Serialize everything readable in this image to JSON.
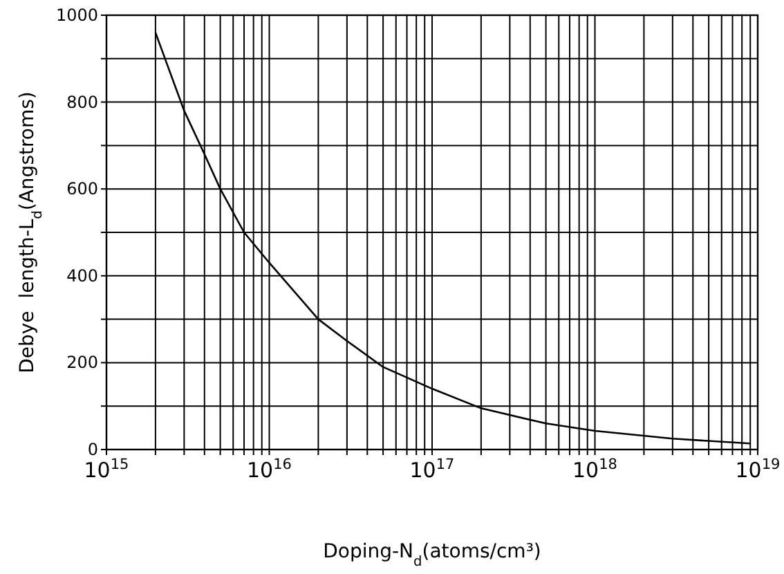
{
  "chart_data": {
    "type": "line",
    "xlabel": "Doping-N$_{d}$(atoms/cm³)",
    "ylabel": "Debye  length-L$_{d}$(Angstroms)",
    "log": "x",
    "xlim": [
      1000000000000000.0,
      1e+19
    ],
    "ylim": [
      0,
      1000
    ],
    "xticks": [
      {
        "value": 1000000000000000.0,
        "label": "10$^{15}$"
      },
      {
        "value": 2000000000000000.0,
        "label": null
      },
      {
        "value": 3000000000000000.0,
        "label": null
      },
      {
        "value": 4000000000000000.0,
        "label": null
      },
      {
        "value": 5000000000000000.0,
        "label": null
      },
      {
        "value": 6000000000000000.0,
        "label": null
      },
      {
        "value": 7000000000000000.0,
        "label": null
      },
      {
        "value": 8000000000000000.0,
        "label": null
      },
      {
        "value": 9000000000000000.0,
        "label": null
      },
      {
        "value": 1e+16,
        "label": "10$^{16}$"
      },
      {
        "value": 2e+16,
        "label": null
      },
      {
        "value": 3e+16,
        "label": null
      },
      {
        "value": 4e+16,
        "label": null
      },
      {
        "value": 5e+16,
        "label": null
      },
      {
        "value": 6e+16,
        "label": null
      },
      {
        "value": 7e+16,
        "label": null
      },
      {
        "value": 8e+16,
        "label": null
      },
      {
        "value": 9e+16,
        "label": null
      },
      {
        "value": 1e+17,
        "label": "10$^{17}$"
      },
      {
        "value": 2e+17,
        "label": null
      },
      {
        "value": 3e+17,
        "label": null
      },
      {
        "value": 4e+17,
        "label": null
      },
      {
        "value": 5e+17,
        "label": null
      },
      {
        "value": 6e+17,
        "label": null
      },
      {
        "value": 7e+17,
        "label": null
      },
      {
        "value": 8e+17,
        "label": null
      },
      {
        "value": 9e+17,
        "label": null
      },
      {
        "value": 1e+18,
        "label": "10$^{18}$"
      },
      {
        "value": 2e+18,
        "label": null
      },
      {
        "value": 3e+18,
        "label": null
      },
      {
        "value": 4e+18,
        "label": null
      },
      {
        "value": 5e+18,
        "label": null
      },
      {
        "value": 6e+18,
        "label": null
      },
      {
        "value": 7e+18,
        "label": null
      },
      {
        "value": 8e+18,
        "label": null
      },
      {
        "value": 9e+18,
        "label": null
      },
      {
        "value": 1e+19,
        "label": "10$^{19}$"
      }
    ],
    "yticks": [
      0,
      {
        "value": 100,
        "label": null
      },
      200,
      {
        "value": 300,
        "label": null
      },
      400,
      {
        "value": 500,
        "label": null
      },
      600,
      {
        "value": 700,
        "label": null
      },
      800,
      {
        "value": 900,
        "label": null
      },
      1000
    ],
    "grid": true,
    "line_style": "solid",
    "marker": "none",
    "series": [
      {
        "color": "#000000",
        "x": [
          2000000000000000.0,
          3000000000000000.0,
          4000000000000000.0,
          5000000000000000.0,
          7000000000000000.0,
          1e+16,
          2e+16,
          3e+16,
          5e+16,
          1e+17,
          2e+17,
          5e+17,
          1e+18,
          3e+18,
          9e+18
        ],
        "values": [
          960,
          780,
          680,
          600,
          500,
          430,
          300,
          250,
          190,
          140,
          95,
          60,
          43,
          25,
          14
        ]
      }
    ]
  }
}
